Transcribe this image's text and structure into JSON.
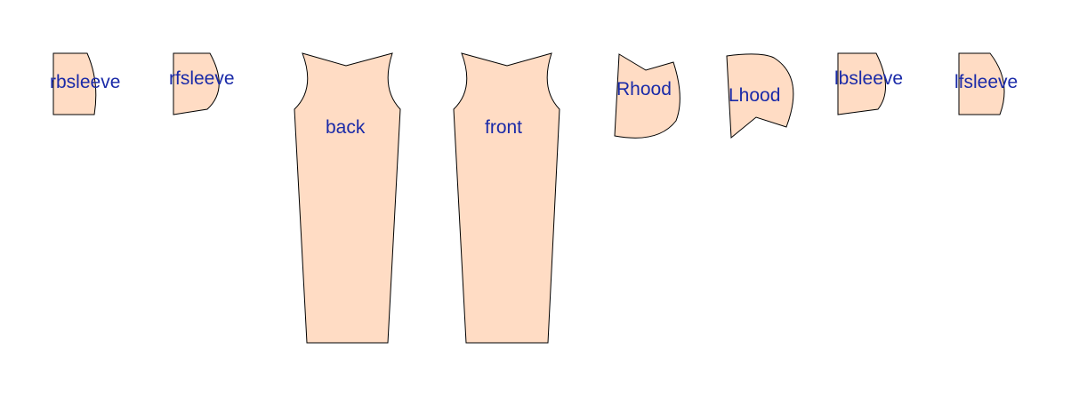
{
  "colors": {
    "piece_fill": "#ffdcc4",
    "piece_stroke": "#000000",
    "label_text": "#1a2aa8",
    "background": "#ffffff"
  },
  "pieces": [
    {
      "id": "rbsleeve",
      "label": "rbsleeve"
    },
    {
      "id": "rfsleeve",
      "label": "rfsleeve"
    },
    {
      "id": "back",
      "label": "back"
    },
    {
      "id": "front",
      "label": "front"
    },
    {
      "id": "rhood",
      "label": "Rhood"
    },
    {
      "id": "lhood",
      "label": "Lhood"
    },
    {
      "id": "lbsleeve",
      "label": "lbsleeve"
    },
    {
      "id": "lfsleeve",
      "label": "lfsleeve"
    }
  ]
}
